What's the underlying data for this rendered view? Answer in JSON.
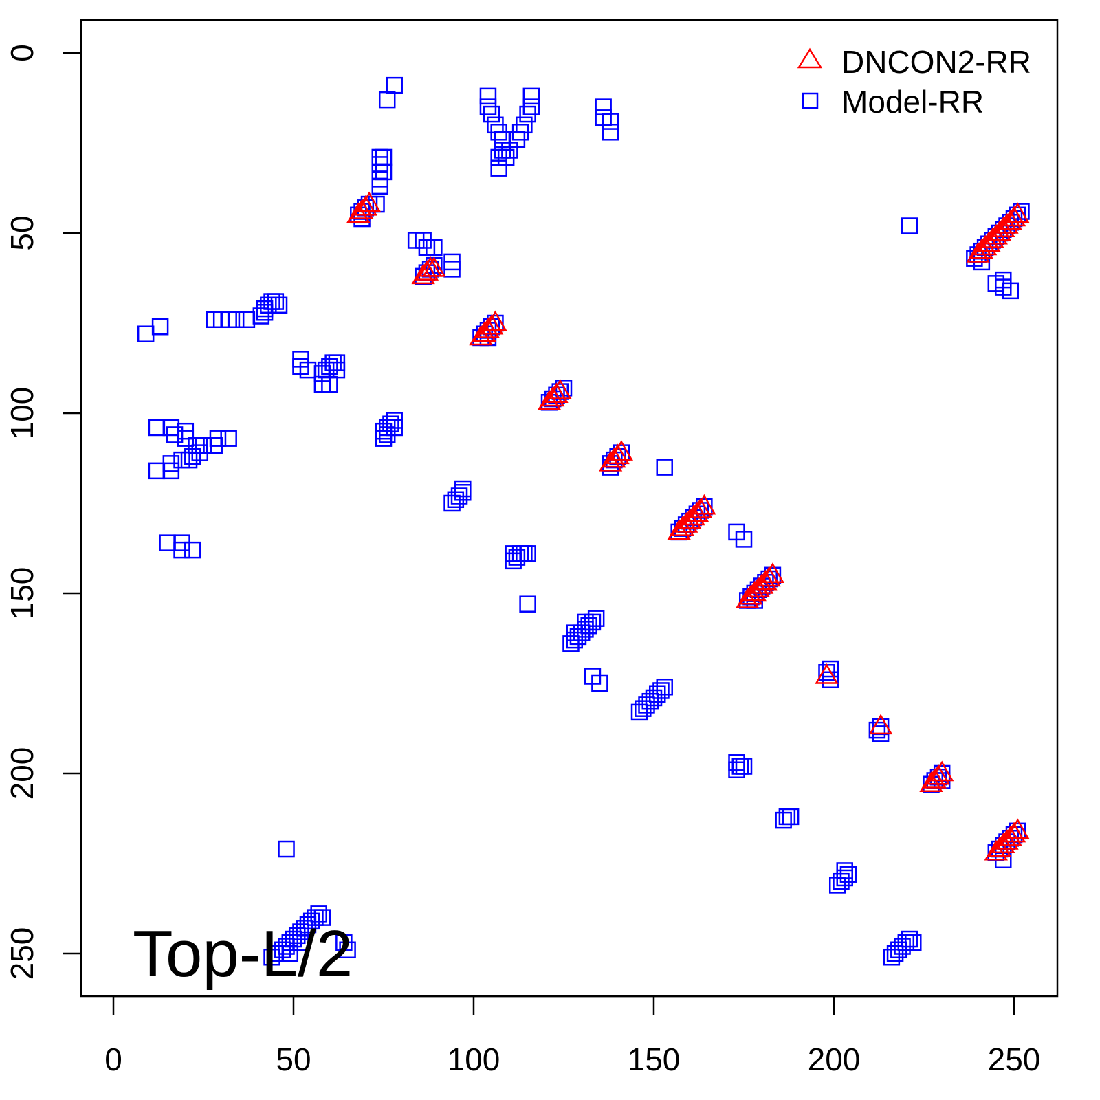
{
  "chart_data": {
    "type": "scatter",
    "title": "",
    "annotation": "Top-L/2",
    "xlabel": "",
    "ylabel": "",
    "xlim": [
      -9,
      262
    ],
    "ylim": [
      262,
      -9
    ],
    "y_inverted": true,
    "x_ticks": [
      0,
      50,
      100,
      150,
      200,
      250
    ],
    "y_ticks": [
      0,
      50,
      100,
      150,
      200,
      250
    ],
    "x_tick_labels": [
      "0",
      "50",
      "100",
      "150",
      "200",
      "250"
    ],
    "y_tick_labels": [
      "0",
      "50",
      "100",
      "150",
      "200",
      "250"
    ],
    "grid": false,
    "legend_position": "top-right",
    "series": [
      {
        "name": "DNCON2-RR",
        "marker": "triangle",
        "color": "#ff0000",
        "points": [
          [
            69,
            44
          ],
          [
            70,
            43
          ],
          [
            71,
            42
          ],
          [
            68,
            45
          ],
          [
            87,
            61
          ],
          [
            88,
            60
          ],
          [
            86,
            62
          ],
          [
            89,
            60
          ],
          [
            102,
            79
          ],
          [
            103,
            78
          ],
          [
            104,
            77
          ],
          [
            105,
            76
          ],
          [
            106,
            75
          ],
          [
            121,
            97
          ],
          [
            122,
            96
          ],
          [
            123,
            95
          ],
          [
            124,
            94
          ],
          [
            138,
            114
          ],
          [
            139,
            113
          ],
          [
            140,
            112
          ],
          [
            141,
            111
          ],
          [
            157,
            133
          ],
          [
            158,
            132
          ],
          [
            159,
            131
          ],
          [
            160,
            130
          ],
          [
            161,
            129
          ],
          [
            162,
            128
          ],
          [
            163,
            127
          ],
          [
            164,
            126
          ],
          [
            176,
            152
          ],
          [
            177,
            151
          ],
          [
            178,
            150
          ],
          [
            179,
            149
          ],
          [
            180,
            148
          ],
          [
            181,
            147
          ],
          [
            182,
            146
          ],
          [
            183,
            145
          ],
          [
            198,
            173
          ],
          [
            213,
            187
          ],
          [
            227,
            203
          ],
          [
            228,
            202
          ],
          [
            229,
            201
          ],
          [
            230,
            200
          ],
          [
            240,
            56
          ],
          [
            241,
            55
          ],
          [
            242,
            54
          ],
          [
            243,
            53
          ],
          [
            244,
            52
          ],
          [
            245,
            51
          ],
          [
            246,
            50
          ],
          [
            247,
            49
          ],
          [
            248,
            48
          ],
          [
            249,
            47
          ],
          [
            250,
            46
          ],
          [
            251,
            45
          ],
          [
            245,
            222
          ],
          [
            246,
            221
          ],
          [
            247,
            220
          ],
          [
            248,
            219
          ],
          [
            249,
            218
          ],
          [
            250,
            217
          ],
          [
            251,
            216
          ]
        ]
      },
      {
        "name": "Model-RR",
        "marker": "square",
        "color": "#0000ff",
        "points": [
          [
            78,
            9
          ],
          [
            76,
            13
          ],
          [
            104,
            12
          ],
          [
            104,
            15
          ],
          [
            105,
            17
          ],
          [
            106,
            20
          ],
          [
            107,
            22
          ],
          [
            108,
            24
          ],
          [
            108,
            27
          ],
          [
            107,
            29
          ],
          [
            107,
            32
          ],
          [
            109,
            29
          ],
          [
            110,
            27
          ],
          [
            116,
            12
          ],
          [
            116,
            15
          ],
          [
            115,
            17
          ],
          [
            114,
            20
          ],
          [
            113,
            22
          ],
          [
            112,
            24
          ],
          [
            136,
            15
          ],
          [
            136,
            18
          ],
          [
            138,
            19
          ],
          [
            138,
            22
          ],
          [
            74,
            29
          ],
          [
            75,
            29
          ],
          [
            74,
            31
          ],
          [
            74,
            33
          ],
          [
            75,
            33
          ],
          [
            74,
            35
          ],
          [
            74,
            37
          ],
          [
            68,
            45
          ],
          [
            69,
            44
          ],
          [
            70,
            43
          ],
          [
            71,
            42
          ],
          [
            69,
            46
          ],
          [
            73,
            42
          ],
          [
            84,
            52
          ],
          [
            86,
            52
          ],
          [
            87,
            54
          ],
          [
            89,
            54
          ],
          [
            86,
            62
          ],
          [
            87,
            61
          ],
          [
            88,
            60
          ],
          [
            89,
            59
          ],
          [
            94,
            58
          ],
          [
            94,
            60
          ],
          [
            42,
            71
          ],
          [
            43,
            70
          ],
          [
            44,
            69
          ],
          [
            45,
            69
          ],
          [
            46,
            70
          ],
          [
            41,
            73
          ],
          [
            42,
            72
          ],
          [
            9,
            78
          ],
          [
            13,
            76
          ],
          [
            28,
            74
          ],
          [
            30,
            74
          ],
          [
            32,
            74
          ],
          [
            34,
            74
          ],
          [
            37,
            74
          ],
          [
            102,
            79
          ],
          [
            103,
            78
          ],
          [
            104,
            77
          ],
          [
            105,
            76
          ],
          [
            106,
            75
          ],
          [
            104,
            79
          ],
          [
            52,
            85
          ],
          [
            52,
            87
          ],
          [
            54,
            88
          ],
          [
            58,
            92
          ],
          [
            60,
            92
          ],
          [
            58,
            89
          ],
          [
            59,
            88
          ],
          [
            60,
            87
          ],
          [
            61,
            86
          ],
          [
            62,
            86
          ],
          [
            62,
            88
          ],
          [
            121,
            97
          ],
          [
            122,
            96
          ],
          [
            123,
            95
          ],
          [
            124,
            94
          ],
          [
            125,
            93
          ],
          [
            12,
            104
          ],
          [
            16,
            104
          ],
          [
            17,
            106
          ],
          [
            20,
            107
          ],
          [
            20,
            105
          ],
          [
            23,
            109
          ],
          [
            25,
            109
          ],
          [
            28,
            109
          ],
          [
            29,
            107
          ],
          [
            32,
            107
          ],
          [
            12,
            116
          ],
          [
            16,
            116
          ],
          [
            16,
            114
          ],
          [
            19,
            113
          ],
          [
            21,
            113
          ],
          [
            22,
            112
          ],
          [
            24,
            111
          ],
          [
            75,
            105
          ],
          [
            76,
            104
          ],
          [
            77,
            103
          ],
          [
            78,
            102
          ],
          [
            78,
            104
          ],
          [
            75,
            107
          ],
          [
            76,
            106
          ],
          [
            138,
            114
          ],
          [
            139,
            113
          ],
          [
            140,
            112
          ],
          [
            141,
            111
          ],
          [
            138,
            115
          ],
          [
            153,
            115
          ],
          [
            94,
            125
          ],
          [
            95,
            124
          ],
          [
            96,
            123
          ],
          [
            97,
            122
          ],
          [
            97,
            121
          ],
          [
            157,
            133
          ],
          [
            158,
            132
          ],
          [
            159,
            131
          ],
          [
            160,
            130
          ],
          [
            161,
            129
          ],
          [
            162,
            128
          ],
          [
            163,
            127
          ],
          [
            164,
            126
          ],
          [
            173,
            133
          ],
          [
            175,
            135
          ],
          [
            15,
            136
          ],
          [
            19,
            136
          ],
          [
            19,
            138
          ],
          [
            22,
            138
          ],
          [
            111,
            141
          ],
          [
            112,
            140
          ],
          [
            113,
            139
          ],
          [
            114,
            139
          ],
          [
            115,
            139
          ],
          [
            111,
            139
          ],
          [
            176,
            152
          ],
          [
            177,
            151
          ],
          [
            178,
            150
          ],
          [
            179,
            149
          ],
          [
            180,
            148
          ],
          [
            181,
            147
          ],
          [
            182,
            146
          ],
          [
            183,
            145
          ],
          [
            178,
            152
          ],
          [
            115,
            153
          ],
          [
            127,
            164
          ],
          [
            128,
            163
          ],
          [
            129,
            162
          ],
          [
            130,
            161
          ],
          [
            131,
            160
          ],
          [
            132,
            159
          ],
          [
            133,
            158
          ],
          [
            134,
            157
          ],
          [
            128,
            161
          ],
          [
            131,
            158
          ],
          [
            133,
            173
          ],
          [
            135,
            175
          ],
          [
            146,
            183
          ],
          [
            147,
            182
          ],
          [
            148,
            181
          ],
          [
            149,
            180
          ],
          [
            150,
            179
          ],
          [
            151,
            178
          ],
          [
            152,
            177
          ],
          [
            153,
            176
          ],
          [
            198,
            172
          ],
          [
            199,
            171
          ],
          [
            199,
            174
          ],
          [
            173,
            199
          ],
          [
            174,
            198
          ],
          [
            175,
            198
          ],
          [
            173,
            197
          ],
          [
            186,
            213
          ],
          [
            187,
            212
          ],
          [
            188,
            212
          ],
          [
            213,
            187
          ],
          [
            213,
            189
          ],
          [
            212,
            188
          ],
          [
            227,
            203
          ],
          [
            228,
            202
          ],
          [
            229,
            201
          ],
          [
            230,
            200
          ],
          [
            230,
            202
          ],
          [
            221,
            48
          ],
          [
            239,
            57
          ],
          [
            240,
            56
          ],
          [
            241,
            55
          ],
          [
            242,
            54
          ],
          [
            243,
            53
          ],
          [
            244,
            52
          ],
          [
            245,
            51
          ],
          [
            246,
            50
          ],
          [
            247,
            49
          ],
          [
            248,
            48
          ],
          [
            249,
            47
          ],
          [
            250,
            46
          ],
          [
            251,
            45
          ],
          [
            252,
            44
          ],
          [
            241,
            58
          ],
          [
            245,
            64
          ],
          [
            247,
            65
          ],
          [
            249,
            66
          ],
          [
            247,
            63
          ],
          [
            48,
            221
          ],
          [
            201,
            231
          ],
          [
            202,
            230
          ],
          [
            203,
            229
          ],
          [
            204,
            228
          ],
          [
            203,
            227
          ],
          [
            245,
            222
          ],
          [
            246,
            221
          ],
          [
            247,
            220
          ],
          [
            248,
            219
          ],
          [
            249,
            218
          ],
          [
            250,
            217
          ],
          [
            251,
            216
          ],
          [
            247,
            224
          ],
          [
            217,
            250
          ],
          [
            218,
            249
          ],
          [
            219,
            248
          ],
          [
            220,
            247
          ],
          [
            221,
            246
          ],
          [
            222,
            247
          ],
          [
            216,
            251
          ],
          [
            44,
            251
          ],
          [
            45,
            250
          ],
          [
            47,
            249
          ],
          [
            48,
            248
          ],
          [
            49,
            247
          ],
          [
            50,
            246
          ],
          [
            51,
            245
          ],
          [
            52,
            244
          ],
          [
            53,
            243
          ],
          [
            54,
            242
          ],
          [
            55,
            241
          ],
          [
            56,
            240
          ],
          [
            57,
            239
          ],
          [
            58,
            240
          ],
          [
            49,
            250
          ],
          [
            52,
            247
          ],
          [
            64,
            247
          ],
          [
            65,
            249
          ]
        ]
      }
    ]
  }
}
